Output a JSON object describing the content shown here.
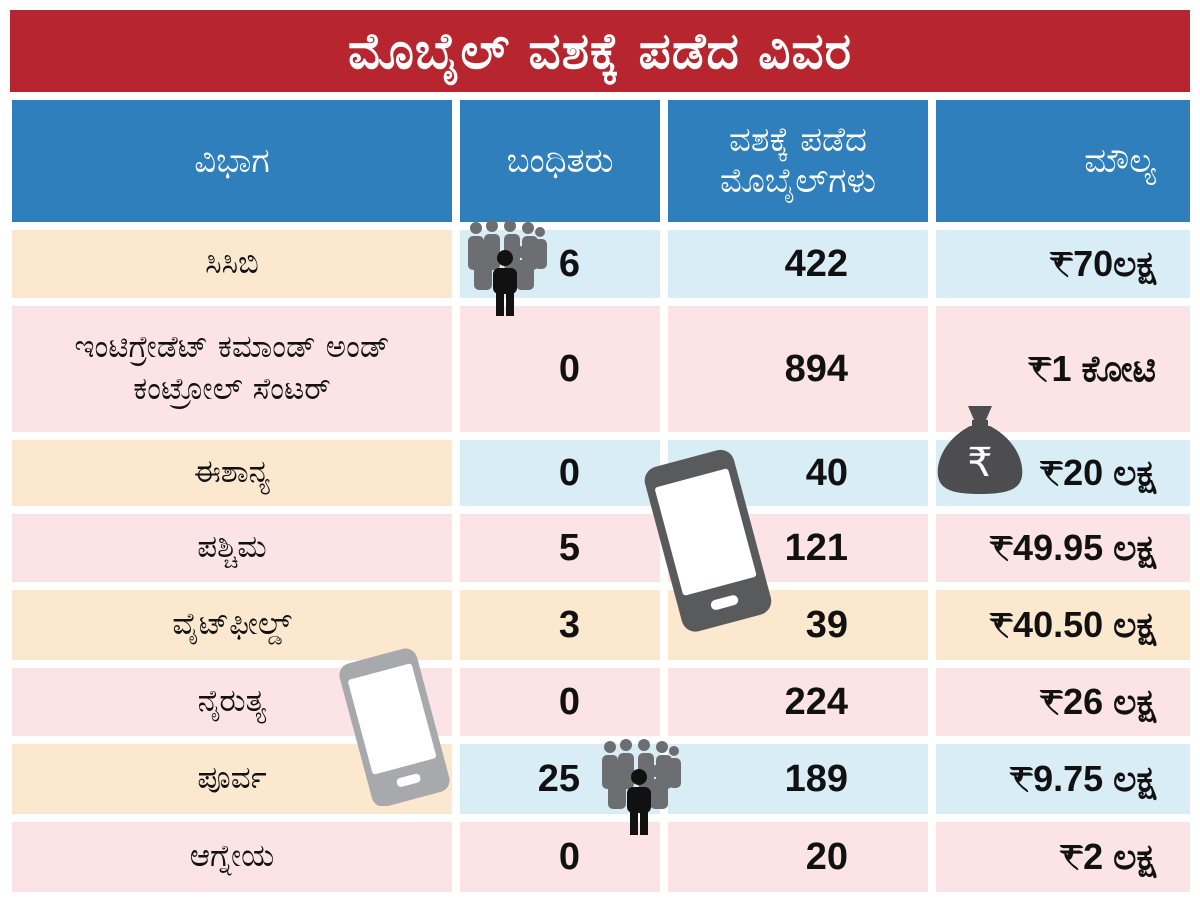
{
  "title": "ಮೊಬೈಲ್ ವಶಕ್ಕೆ ಪಡೆದ ವಿವರ",
  "headers": [
    "ವಿಭಾಗ",
    "ಬಂಧಿತರು",
    "ವಶಕ್ಕೆ ಪಡೆದ ಮೊಬೈಲ್‌ಗಳು",
    "ಮೌಲ್ಯ"
  ],
  "colors": {
    "title_bg": "#b7252f",
    "header_bg": "#2f7fbd",
    "peach": "#fbe8cf",
    "blue": "#d9edf6",
    "pink": "#fbe3e6"
  },
  "chart_data": {
    "type": "table",
    "title": "ಮೊಬೈಲ್ ವಶಕ್ಕೆ ಪಡೆದ ವಿವರ",
    "columns": [
      "ವಿಭಾಗ",
      "ಬಂಧಿತರು",
      "ವಶಕ್ಕೆ ಪಡೆದ ಮೊಬೈಲ್‌ಗಳು",
      "ಮೌಲ್ಯ"
    ],
    "rows": [
      {
        "division": "ಸಿಸಿಬಿ",
        "arrested": "6",
        "mobiles": "422",
        "value": "₹70ಲಕ್ಷ"
      },
      {
        "division": "ಇಂಟಿಗ್ರೇಡೆಟ್ ಕಮಾಂಡ್ ಅಂಡ್ ಕಂಟ್ರೋಲ್ ಸೆಂಟರ್",
        "arrested": "0",
        "mobiles": "894",
        "value": "₹1 ಕೋಟಿ"
      },
      {
        "division": "ಈಶಾನ್ಯ",
        "arrested": "0",
        "mobiles": "40",
        "value": "₹20 ಲಕ್ಷ"
      },
      {
        "division": "ಪಶ್ಚಿಮ",
        "arrested": "5",
        "mobiles": "121",
        "value": "₹49.95 ಲಕ್ಷ"
      },
      {
        "division": "ವೈಟ್‌ಫೀಲ್ಡ್",
        "arrested": "3",
        "mobiles": "39",
        "value": "₹40.50 ಲಕ್ಷ"
      },
      {
        "division": "ನೈರುತ್ಯ",
        "arrested": "0",
        "mobiles": "224",
        "value": "₹26 ಲಕ್ಷ"
      },
      {
        "division": "ಪೂರ್ವ",
        "arrested": "25",
        "mobiles": "189",
        "value": "₹9.75 ಲಕ್ಷ"
      },
      {
        "division": "ಆಗ್ನೇಯ",
        "arrested": "0",
        "mobiles": "20",
        "value": "₹2 ಲಕ್ಷ"
      }
    ]
  },
  "icons": [
    "people-group-icon",
    "smartphone-icon",
    "money-bag-rupee-icon",
    "rupee-symbol"
  ]
}
